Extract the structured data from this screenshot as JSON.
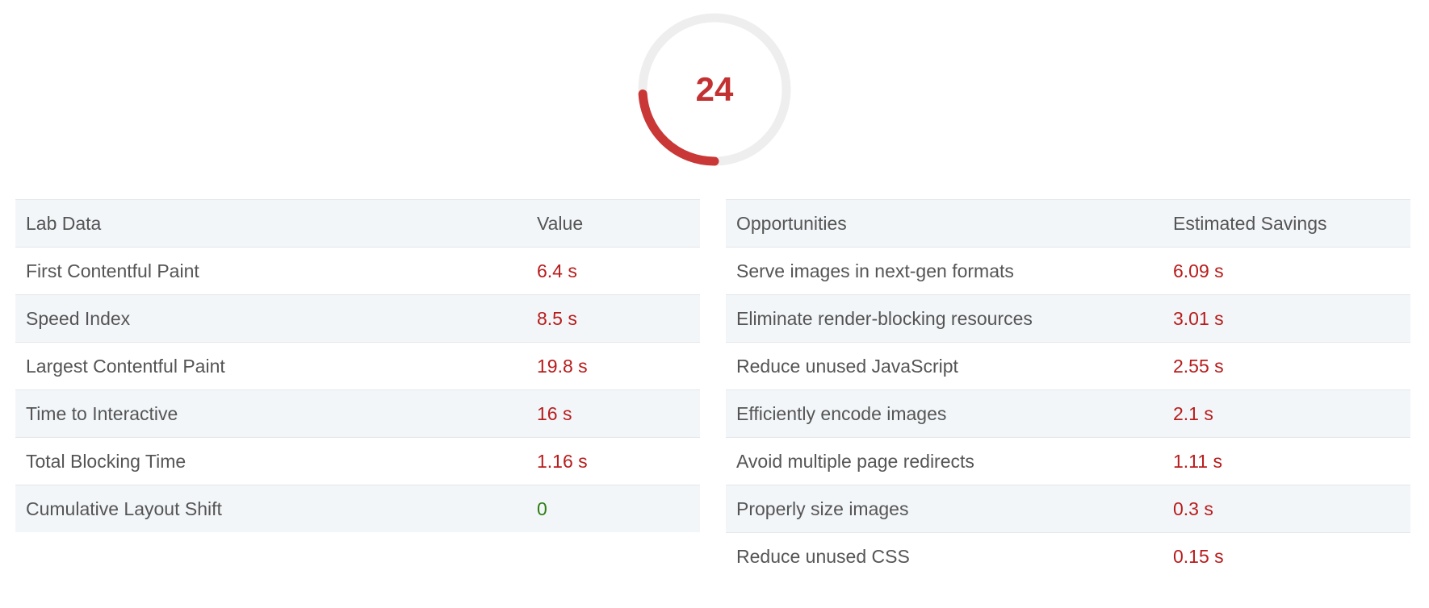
{
  "score": {
    "value": "24",
    "fraction": 0.24,
    "track_color": "#eeeeee",
    "arc_color": "#c93737"
  },
  "lab_data": {
    "header_label": "Lab Data",
    "header_value": "Value",
    "rows": [
      {
        "label": "First Contentful Paint",
        "value": "6.4 s",
        "status": "poor"
      },
      {
        "label": "Speed Index",
        "value": "8.5 s",
        "status": "poor"
      },
      {
        "label": "Largest Contentful Paint",
        "value": "19.8 s",
        "status": "poor"
      },
      {
        "label": "Time to Interactive",
        "value": "16 s",
        "status": "poor"
      },
      {
        "label": "Total Blocking Time",
        "value": "1.16 s",
        "status": "poor"
      },
      {
        "label": "Cumulative Layout Shift",
        "value": "0",
        "status": "good"
      }
    ]
  },
  "opportunities": {
    "header_label": "Opportunities",
    "header_value": "Estimated Savings",
    "rows": [
      {
        "label": "Serve images in next-gen formats",
        "value": "6.09 s"
      },
      {
        "label": "Eliminate render-blocking resources",
        "value": "3.01 s"
      },
      {
        "label": "Reduce unused JavaScript",
        "value": "2.55 s"
      },
      {
        "label": "Efficiently encode images",
        "value": "2.1 s"
      },
      {
        "label": "Avoid multiple page redirects",
        "value": "1.11 s"
      },
      {
        "label": "Properly size images",
        "value": "0.3 s"
      },
      {
        "label": "Reduce unused CSS",
        "value": "0.15 s"
      }
    ]
  },
  "colors": {
    "poor": "#b81c1c",
    "good": "#2e7d12",
    "shade": "#f3f6f9"
  }
}
